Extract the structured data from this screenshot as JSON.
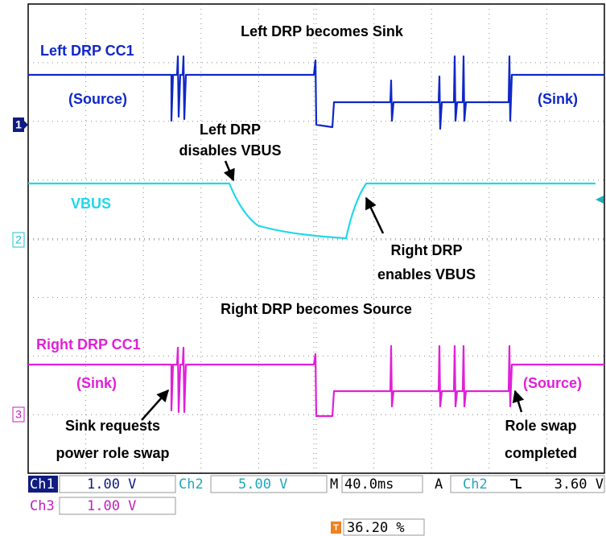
{
  "annotations": {
    "top_title": "Left DRP becomes Sink",
    "ch1_name": "Left DRP CC1",
    "ch1_left_state": "(Source)",
    "ch1_right_state": "(Sink)",
    "left_disable_line1": "Left DRP",
    "left_disable_line2": "disables VBUS",
    "vbus_name": "VBUS",
    "right_enable_line1": "Right DRP",
    "right_enable_line2": "enables VBUS",
    "bottom_title": "Right DRP becomes Source",
    "ch3_name": "Right DRP CC1",
    "ch3_left_state": "(Sink)",
    "ch3_right_state": "(Source)",
    "sink_request_line1": "Sink requests",
    "sink_request_line2": "power role swap",
    "swap_done_line1": "Role swap",
    "swap_done_line2": "completed"
  },
  "markers": {
    "ch1": "1",
    "ch2": "2",
    "ch3": "3",
    "trigger": "T"
  },
  "status": {
    "ch1_label": "Ch1",
    "ch1_scale": "1.00 V",
    "ch2_label": "Ch2",
    "ch2_scale": "5.00 V",
    "timebase_label": "M",
    "timebase": "40.0ms",
    "trigger_mode": "A",
    "trigger_source": "Ch2",
    "trigger_level": "3.60 V",
    "ch3_label": "Ch3",
    "ch3_scale": "1.00 V",
    "trigger_position": "36.20 %"
  }
}
